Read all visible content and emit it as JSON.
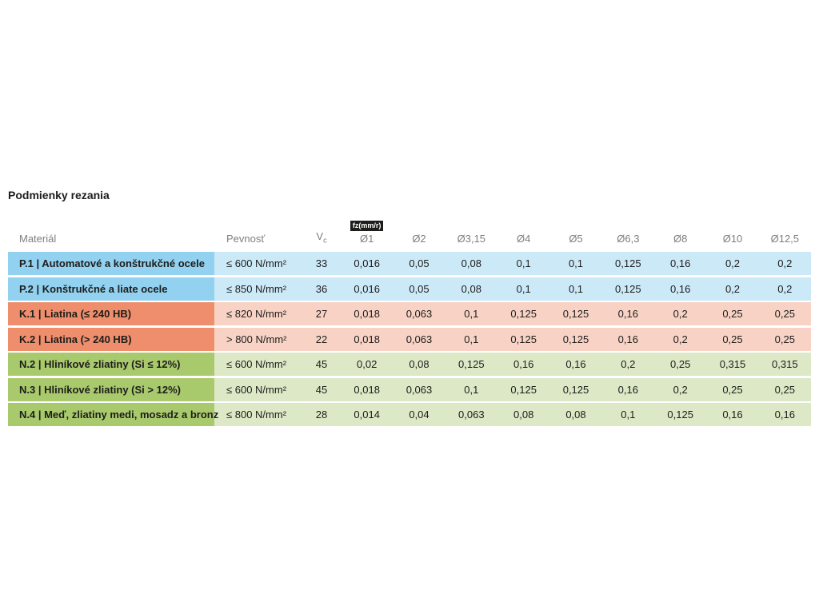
{
  "title": "Podmienky rezania",
  "table": {
    "headers": {
      "material": "Materiál",
      "strength": "Pevnosť",
      "vc_base": "V",
      "vc_sub": "c",
      "fz_badge": "fz(mm/r)",
      "diameters": [
        "Ø1",
        "Ø2",
        "Ø3,15",
        "Ø4",
        "Ø5",
        "Ø6,3",
        "Ø8",
        "Ø10",
        "Ø12,5"
      ]
    },
    "rows": [
      {
        "material": "P.1 | Automatové a konštrukčné ocele",
        "strength": "≤ 600 N/mm²",
        "vc": "33",
        "fz": [
          "0,016",
          "0,05",
          "0,08",
          "0,1",
          "0,1",
          "0,125",
          "0,16",
          "0,2",
          "0,2"
        ],
        "group": "steel"
      },
      {
        "material": "P.2 | Konštrukčné a liate ocele",
        "strength": "≤ 850 N/mm²",
        "vc": "36",
        "fz": [
          "0,016",
          "0,05",
          "0,08",
          "0,1",
          "0,1",
          "0,125",
          "0,16",
          "0,2",
          "0,2"
        ],
        "group": "steel"
      },
      {
        "material": "K.1 | Liatina (≤ 240 HB)",
        "strength": "≤ 820 N/mm²",
        "vc": "27",
        "fz": [
          "0,018",
          "0,063",
          "0,1",
          "0,125",
          "0,125",
          "0,16",
          "0,2",
          "0,25",
          "0,25"
        ],
        "group": "cast_iron"
      },
      {
        "material": "K.2 | Liatina (> 240 HB)",
        "strength": "> 800 N/mm²",
        "vc": "22",
        "fz": [
          "0,018",
          "0,063",
          "0,1",
          "0,125",
          "0,125",
          "0,16",
          "0,2",
          "0,25",
          "0,25"
        ],
        "group": "cast_iron"
      },
      {
        "material": "N.2 | Hliníkové zliatiny (Si ≤ 12%)",
        "strength": "≤ 600 N/mm²",
        "vc": "45",
        "fz": [
          "0,02",
          "0,08",
          "0,125",
          "0,16",
          "0,16",
          "0,2",
          "0,25",
          "0,315",
          "0,315"
        ],
        "group": "non_ferrous"
      },
      {
        "material": "N.3 | Hliníkové zliatiny (Si > 12%)",
        "strength": "≤ 600 N/mm²",
        "vc": "45",
        "fz": [
          "0,018",
          "0,063",
          "0,1",
          "0,125",
          "0,125",
          "0,16",
          "0,2",
          "0,25",
          "0,25"
        ],
        "group": "non_ferrous"
      },
      {
        "material": "N.4 | Meď, zliatiny medi, mosadz a bronz",
        "strength": "≤ 800 N/mm²",
        "vc": "28",
        "fz": [
          "0,014",
          "0,04",
          "0,063",
          "0,08",
          "0,08",
          "0,1",
          "0,125",
          "0,16",
          "0,16"
        ],
        "group": "non_ferrous"
      }
    ],
    "colors": {
      "steel_label": "#92d1ef",
      "steel_data": "#cce9f8",
      "cast_iron_label": "#ef8e6c",
      "cast_iron_data": "#f8d3c5",
      "non_ferrous_label": "#a9ca6c",
      "non_ferrous_data": "#dce8c6",
      "badge_bg": "#1d1d1b",
      "badge_text": "#ffffff",
      "header_text": "#7f7f7f",
      "body_text": "#1d1d1b"
    }
  }
}
